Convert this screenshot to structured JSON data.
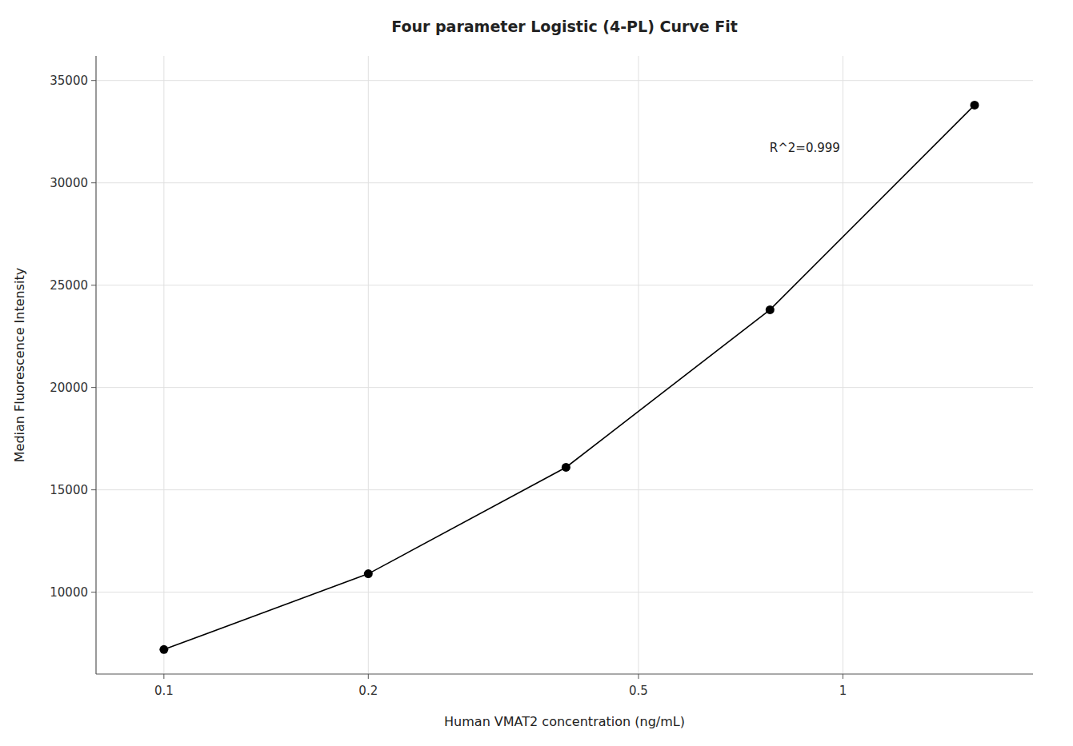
{
  "chart_data": {
    "type": "scatter",
    "title": "Four parameter Logistic (4-PL) Curve Fit",
    "x_label": "Human VMAT2 concentration (ng/mL)",
    "y_label": "Median Fluorescence Intensity",
    "x": [
      0.1,
      0.2,
      0.391,
      0.781,
      1.563
    ],
    "values": [
      7200,
      10900,
      16100,
      23800,
      33800
    ],
    "color": "#000000",
    "marker": "circle",
    "line_style": "solid",
    "log": "x",
    "xlim": [
      0.07943282347242814,
      1.9054607179632472
    ],
    "ylim": [
      6000,
      36200
    ],
    "xticks": [
      0.1,
      0.2,
      0.5,
      1
    ],
    "yticks": [
      10000,
      15000,
      20000,
      25000,
      30000,
      35000
    ],
    "grid": true,
    "annotations": [
      {
        "text": "R^2=0.999",
        "x": 0.78,
        "y": 31500
      }
    ]
  }
}
